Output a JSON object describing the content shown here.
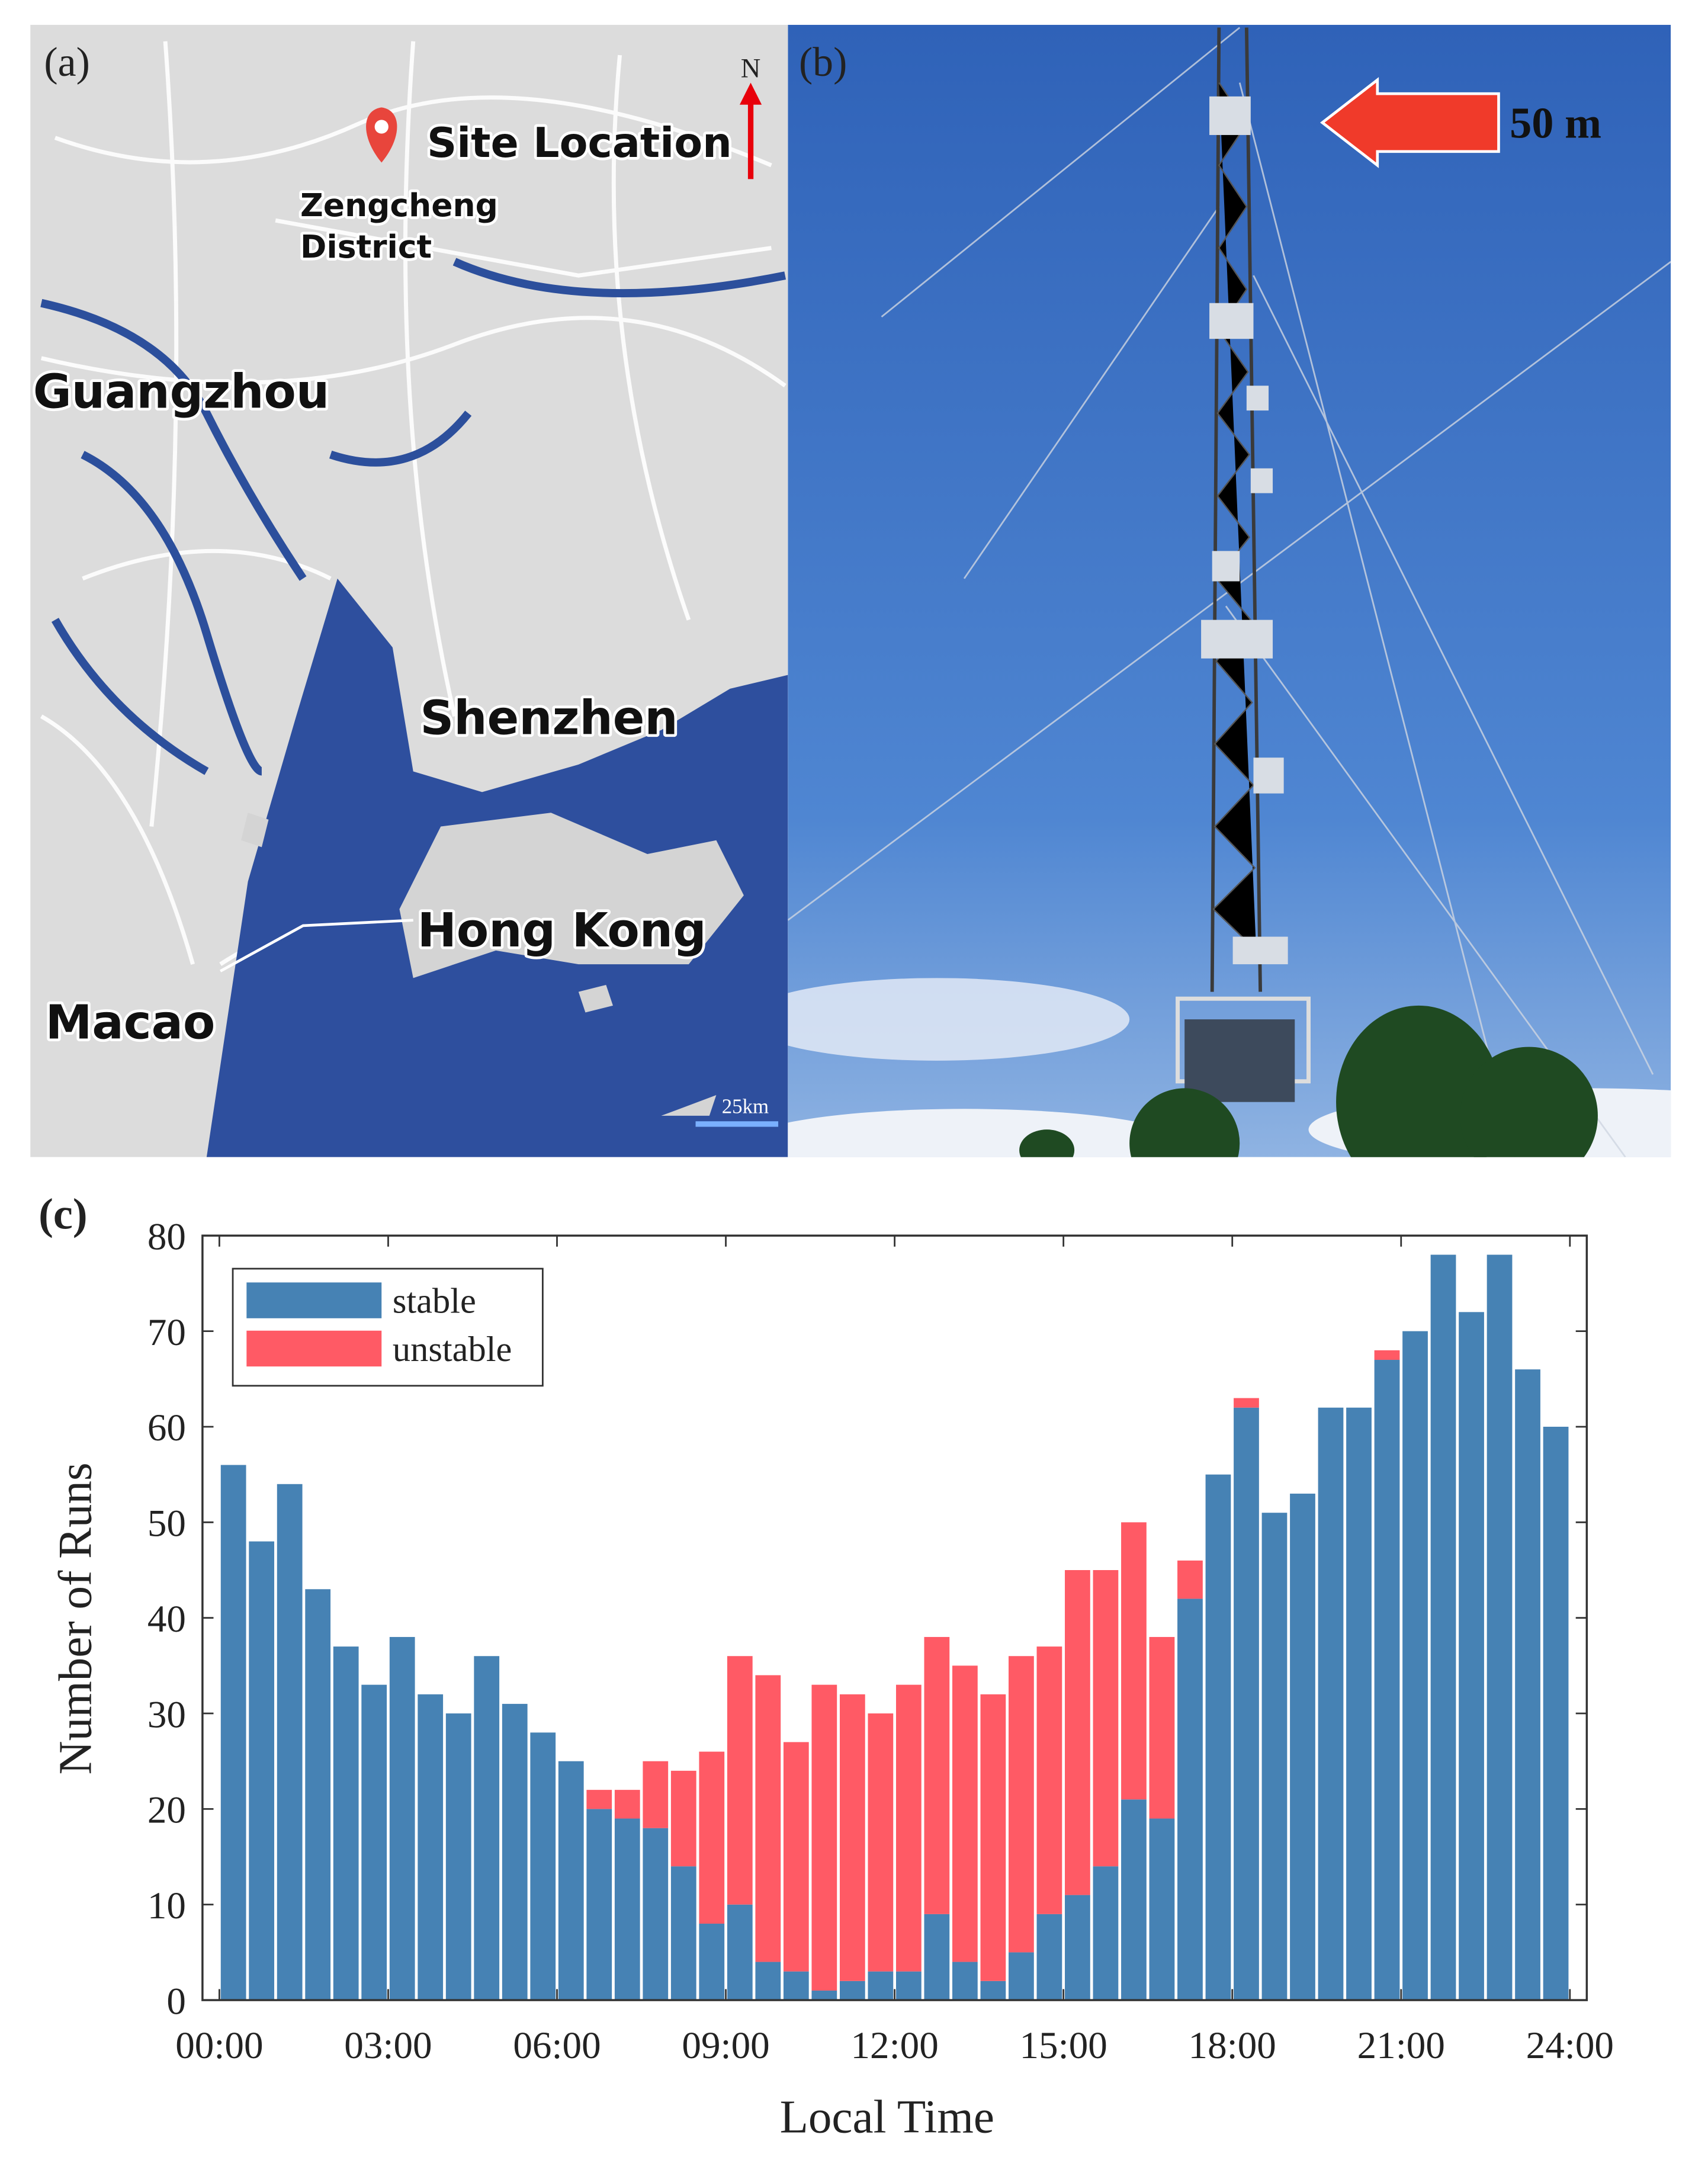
{
  "panel_a": {
    "panel_label": "(a)",
    "north": "N",
    "site": "Site Location",
    "district": [
      "Zengcheng",
      "District"
    ],
    "cities": [
      "Guangzhou",
      "Shenzhen",
      "Hong Kong",
      "Macao"
    ],
    "scale": "25km"
  },
  "panel_b": {
    "panel_label": "(b)",
    "height_label": "50 m"
  },
  "chart_data": {
    "type": "bar",
    "stacked": true,
    "panel_label": "(c)",
    "x_label": "Local Time",
    "y_label": "Number of Runs",
    "x": [
      0.25,
      0.75,
      1.25,
      1.75,
      2.25,
      2.75,
      3.25,
      3.75,
      4.25,
      4.75,
      5.25,
      5.75,
      6.25,
      6.75,
      7.25,
      7.75,
      8.25,
      8.75,
      9.25,
      9.75,
      10.25,
      10.75,
      11.25,
      11.75,
      12.25,
      12.75,
      13.25,
      13.75,
      14.25,
      14.75,
      15.25,
      15.75,
      16.25,
      16.75,
      17.25,
      17.75,
      18.25,
      18.75,
      19.25,
      19.75,
      20.25,
      20.75,
      21.25,
      21.75,
      22.25,
      22.75,
      23.25,
      23.75
    ],
    "series": [
      {
        "name": "stable",
        "color": "#4682b4",
        "values": [
          56,
          48,
          54,
          43,
          37,
          33,
          38,
          32,
          30,
          36,
          31,
          28,
          25,
          20,
          19,
          18,
          14,
          8,
          10,
          4,
          3,
          1,
          2,
          3,
          3,
          9,
          4,
          2,
          5,
          9,
          11,
          14,
          21,
          19,
          42,
          55,
          62,
          51,
          53,
          62,
          62,
          67,
          70,
          78,
          72,
          78,
          66,
          60
        ]
      },
      {
        "name": "unstable",
        "color": "#ff5a65",
        "values": [
          0,
          0,
          0,
          0,
          0,
          0,
          0,
          0,
          0,
          0,
          0,
          0,
          0,
          2,
          3,
          7,
          10,
          18,
          26,
          30,
          24,
          32,
          30,
          27,
          30,
          29,
          31,
          30,
          31,
          28,
          34,
          31,
          29,
          19,
          4,
          0,
          1,
          0,
          0,
          0,
          0,
          1,
          0,
          0,
          0,
          0,
          0,
          0
        ]
      }
    ],
    "xlim": [
      -0.3,
      24.3
    ],
    "xticks": [
      {
        "value": 0,
        "label": "00:00"
      },
      {
        "value": 3,
        "label": "03:00"
      },
      {
        "value": 6,
        "label": "06:00"
      },
      {
        "value": 9,
        "label": "09:00"
      },
      {
        "value": 12,
        "label": "12:00"
      },
      {
        "value": 15,
        "label": "15:00"
      },
      {
        "value": 18,
        "label": "18:00"
      },
      {
        "value": 21,
        "label": "21:00"
      },
      {
        "value": 24,
        "label": "24:00"
      }
    ],
    "ylim": [
      0,
      80
    ],
    "yticks": [
      0,
      10,
      20,
      30,
      40,
      50,
      60,
      70,
      80
    ],
    "legend": "top-left"
  }
}
